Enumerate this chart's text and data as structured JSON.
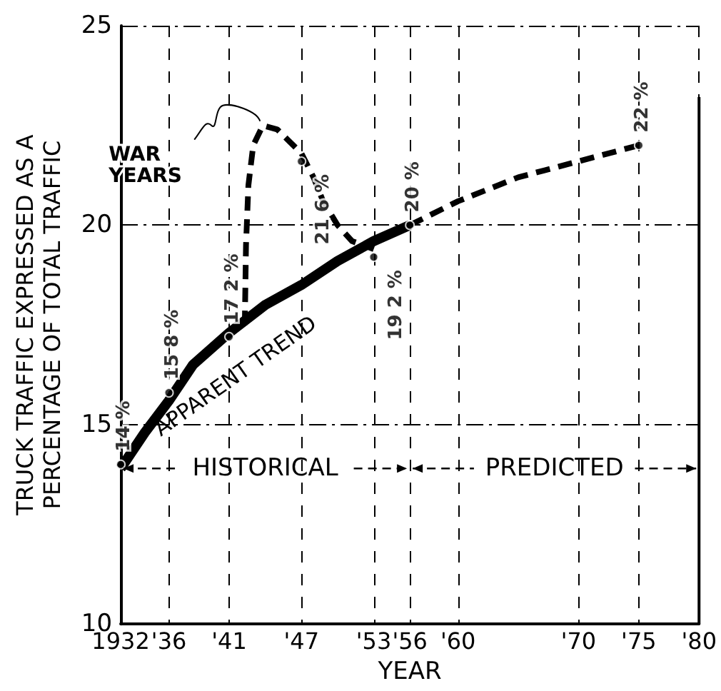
{
  "chart_data": {
    "type": "line",
    "xlabel": "YEAR",
    "ylabel": "TRUCK TRAFFIC EXPRESSED AS A\nPERCENTAGE OF TOTAL TRAFFIC",
    "xlim": [
      1932,
      1980
    ],
    "xticks": [
      1932,
      {
        "value": 1936,
        "label": "'36"
      },
      {
        "value": 1941,
        "label": "'41"
      },
      {
        "value": 1947,
        "label": "'47"
      },
      {
        "value": 1953,
        "label": "'53"
      },
      {
        "value": 1956,
        "label": "'56"
      },
      {
        "value": 1960,
        "label": "'60"
      },
      {
        "value": 1970,
        "label": "'70"
      },
      {
        "value": 1975,
        "label": "'75"
      },
      {
        "value": 1980,
        "label": "'80"
      }
    ],
    "ylim": [
      10,
      25
    ],
    "yticks": [
      10,
      15,
      20,
      25
    ],
    "grid": true,
    "legend": false,
    "marker": "none",
    "series": [
      {
        "name": "APPARENT TREND",
        "color": "#000000",
        "line_style": "solid",
        "x": [
          1932,
          1934,
          1936,
          1938,
          1941,
          1944,
          1947,
          1950,
          1953,
          1956
        ],
        "values": [
          13.9,
          14.8,
          15.6,
          16.5,
          17.3,
          18.0,
          18.5,
          19.1,
          19.6,
          20.0
        ]
      },
      {
        "color": "#000000",
        "line_style": "dashed",
        "x": [
          1942.3,
          1942.4,
          1942.6,
          1943,
          1943.8,
          1945,
          1946,
          1947,
          1948,
          1948.8,
          1950,
          1951.2,
          1953
        ],
        "values": [
          17.5,
          19.5,
          21.0,
          22.0,
          22.5,
          22.4,
          22.1,
          21.8,
          21.2,
          20.6,
          20.0,
          19.6,
          19.4
        ]
      },
      {
        "color": "#000000",
        "line_style": "dashed",
        "x": [
          1956,
          1960,
          1965,
          1970,
          1975
        ],
        "values": [
          20.0,
          20.6,
          21.2,
          21.6,
          22.0
        ]
      },
      {
        "type": "scatter",
        "color": "#000000",
        "marker": "circle",
        "x": [
          1932,
          1936,
          1941,
          1947,
          1953,
          1956,
          1975
        ],
        "values": [
          14,
          15.8,
          17.2,
          21.6,
          19.2,
          20,
          22
        ],
        "value_labels": [
          "14 %",
          "15 8 %",
          "17 2 %",
          "21 6 %",
          "19 2 %",
          "20 %",
          "22 %"
        ]
      }
    ],
    "annotations": [
      {
        "text": "WAR\nYEARS",
        "x": 1943.8,
        "y": 22.5
      },
      "HISTORICAL",
      "PREDICTED"
    ]
  }
}
